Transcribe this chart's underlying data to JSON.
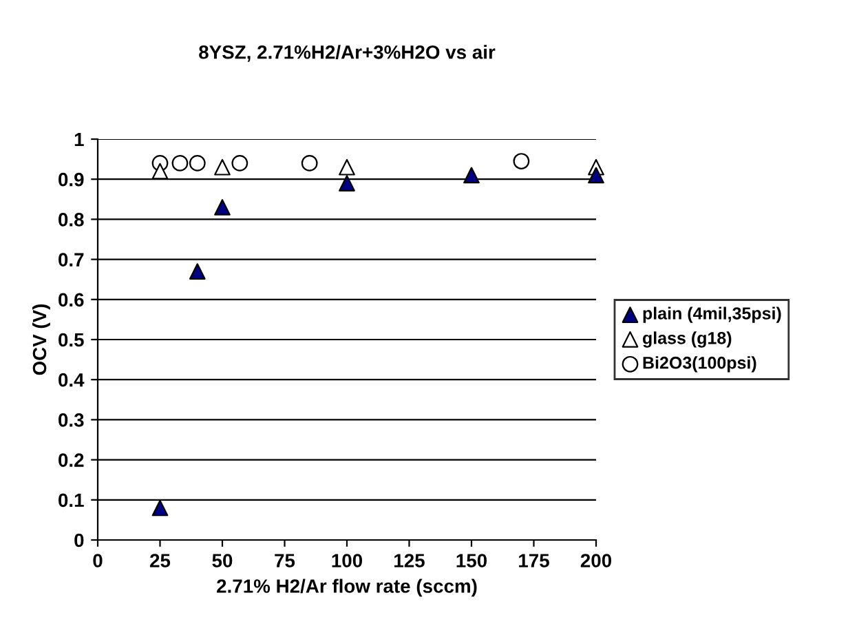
{
  "chart_data": {
    "type": "scatter",
    "title": "8YSZ, 2.71%H2/Ar+3%H2O vs air",
    "xlabel": "2.71% H2/Ar flow rate (sccm)",
    "ylabel": "OCV (V)",
    "xlim": [
      0,
      200
    ],
    "xticks": [
      0,
      25,
      50,
      75,
      100,
      125,
      150,
      175,
      200
    ],
    "ylim": [
      0,
      1
    ],
    "yticks": [
      0,
      0.1,
      0.2,
      0.3,
      0.4,
      0.5,
      0.6,
      0.7,
      0.8,
      0.9,
      1
    ],
    "grid": "y",
    "legend": "right",
    "series": [
      {
        "name": "plain (4mil,35psi)",
        "color": "#000080",
        "marker": "triangle",
        "x": [
          25,
          40,
          50,
          100,
          150,
          200
        ],
        "values": [
          0.08,
          0.67,
          0.83,
          0.89,
          0.91,
          0.91
        ]
      },
      {
        "name": "glass (g18)",
        "color": "#ffffff",
        "marker": "triangle",
        "x": [
          25,
          50,
          100,
          200
        ],
        "values": [
          0.92,
          0.93,
          0.93,
          0.93
        ]
      },
      {
        "name": "Bi2O3(100psi)",
        "color": "#ffffff",
        "marker": "circle",
        "x": [
          25,
          33,
          40,
          57,
          85,
          170
        ],
        "values": [
          0.94,
          0.94,
          0.94,
          0.94,
          0.94,
          0.945
        ]
      }
    ]
  }
}
